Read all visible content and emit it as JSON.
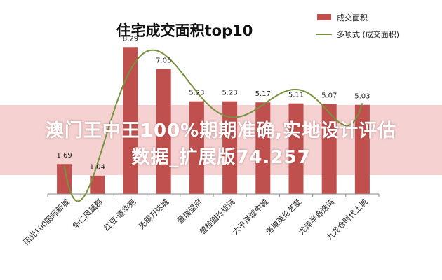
{
  "colors": {
    "bar": "#C0504D",
    "trend": "#77933C",
    "axis": "#888888",
    "banner": "#F3C7C7"
  },
  "chart_data": {
    "type": "bar",
    "title": "住宅成交面积top10",
    "categories": [
      "阳光100国际新城",
      "华仁凤凰郡",
      "红豆·清华苑",
      "无锡万达城",
      "景瑞望府",
      "碧桂园玲珑湾",
      "太平洋城中城",
      "洛城英伦艺墅",
      "龙泽半岛逸湾",
      "九龙仓时代上城"
    ],
    "series": [
      {
        "name": "成交面积",
        "values": [
          1.69,
          1.04,
          8.29,
          7.05,
          5.23,
          5.23,
          5.17,
          5.11,
          5.07,
          5.03
        ]
      }
    ],
    "trendline": {
      "name": "多项式 (成交面积)"
    },
    "ylim": [
      0,
      9
    ],
    "legend_position": "top-right",
    "grid": false
  },
  "overlay": {
    "line1": "澳门王中王100%期期准确,实地设计评估",
    "line2": "数据_扩展版74.257"
  }
}
